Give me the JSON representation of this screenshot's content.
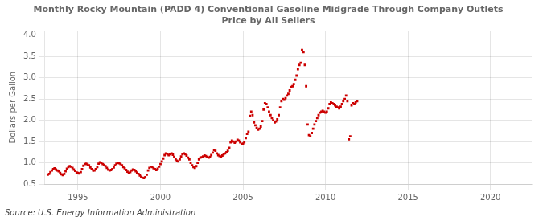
{
  "chart_data": {
    "type": "scatter",
    "title": "Monthly Rocky Mountain (PADD 4) Conventional Gasoline Midgrade Through Company Outlets\nPrice by All Sellers",
    "ylabel": "Dollars per Gallon",
    "annotations": [
      "Source: U.S. Energy Information Administration"
    ],
    "color": "#cc0000",
    "marker": "square",
    "grid": true,
    "xlim": [
      1993.0,
      2022.5
    ],
    "xticks": [
      1995,
      2000,
      2005,
      2010,
      2015,
      2020
    ],
    "ylim": [
      0.5,
      4.1
    ],
    "yticks": [
      0.5,
      {
        "value": 1.0,
        "label": "1.0"
      },
      1.5,
      {
        "value": 2.0,
        "label": "2.0"
      },
      2.5,
      {
        "value": 3.0,
        "label": "3.0"
      },
      3.5,
      {
        "value": 4.0,
        "label": "4.0"
      }
    ],
    "x": [
      1993.17,
      1993.25,
      1993.33,
      1993.42,
      1993.5,
      1993.58,
      1993.67,
      1993.75,
      1993.83,
      1993.92,
      1994.0,
      1994.08,
      1994.17,
      1994.25,
      1994.33,
      1994.42,
      1994.5,
      1994.58,
      1994.67,
      1994.75,
      1994.83,
      1994.92,
      1995.0,
      1995.08,
      1995.17,
      1995.25,
      1995.33,
      1995.42,
      1995.5,
      1995.58,
      1995.67,
      1995.75,
      1995.83,
      1995.92,
      1996.0,
      1996.08,
      1996.17,
      1996.25,
      1996.33,
      1996.42,
      1996.5,
      1996.58,
      1996.67,
      1996.75,
      1996.83,
      1996.92,
      1997.0,
      1997.08,
      1997.17,
      1997.25,
      1997.33,
      1997.42,
      1997.5,
      1997.58,
      1997.67,
      1997.75,
      1997.83,
      1997.92,
      1998.0,
      1998.08,
      1998.17,
      1998.25,
      1998.33,
      1998.42,
      1998.5,
      1998.58,
      1998.67,
      1998.75,
      1998.83,
      1998.92,
      1999.0,
      1999.08,
      1999.17,
      1999.25,
      1999.33,
      1999.42,
      1999.5,
      1999.58,
      1999.67,
      1999.75,
      1999.83,
      1999.92,
      2000.0,
      2000.08,
      2000.17,
      2000.25,
      2000.33,
      2000.42,
      2000.5,
      2000.58,
      2000.67,
      2000.75,
      2000.83,
      2000.92,
      2001.0,
      2001.08,
      2001.17,
      2001.25,
      2001.33,
      2001.42,
      2001.5,
      2001.58,
      2001.67,
      2001.75,
      2001.83,
      2001.92,
      2002.0,
      2002.08,
      2002.17,
      2002.25,
      2002.33,
      2002.42,
      2002.5,
      2002.58,
      2002.67,
      2002.75,
      2002.83,
      2002.92,
      2003.0,
      2003.08,
      2003.17,
      2003.25,
      2003.33,
      2003.42,
      2003.5,
      2003.58,
      2003.67,
      2003.75,
      2003.83,
      2003.92,
      2004.0,
      2004.08,
      2004.17,
      2004.25,
      2004.33,
      2004.42,
      2004.5,
      2004.58,
      2004.67,
      2004.75,
      2004.83,
      2004.92,
      2005.0,
      2005.08,
      2005.17,
      2005.25,
      2005.33,
      2005.42,
      2005.5,
      2005.58,
      2005.67,
      2005.75,
      2005.83,
      2005.92,
      2006.0,
      2006.08,
      2006.17,
      2006.25,
      2006.33,
      2006.42,
      2006.5,
      2006.58,
      2006.67,
      2006.75,
      2006.83,
      2006.92,
      2007.0,
      2007.08,
      2007.17,
      2007.25,
      2007.33,
      2007.42,
      2007.5,
      2007.58,
      2007.67,
      2007.75,
      2007.83,
      2007.92,
      2008.0,
      2008.08,
      2008.17,
      2008.25,
      2008.33,
      2008.42,
      2008.5,
      2008.58,
      2008.67,
      2008.75,
      2008.83,
      2008.92,
      2009.0,
      2009.08,
      2009.17,
      2009.25,
      2009.33,
      2009.42,
      2009.5,
      2009.58,
      2009.67,
      2009.75,
      2009.83,
      2009.92,
      2010.0,
      2010.08,
      2010.17,
      2010.25,
      2010.33,
      2010.42,
      2010.5,
      2010.58,
      2010.67,
      2010.75,
      2010.83,
      2010.92,
      2011.0,
      2011.08,
      2011.17,
      2011.25,
      2011.33,
      2011.42,
      2011.5,
      2011.58,
      2011.67,
      2011.75,
      2011.83,
      2011.92
    ],
    "values": [
      0.72,
      0.74,
      0.78,
      0.82,
      0.85,
      0.87,
      0.84,
      0.82,
      0.8,
      0.76,
      0.73,
      0.71,
      0.74,
      0.8,
      0.86,
      0.9,
      0.92,
      0.91,
      0.88,
      0.84,
      0.81,
      0.77,
      0.76,
      0.75,
      0.78,
      0.85,
      0.93,
      0.97,
      0.98,
      0.96,
      0.94,
      0.89,
      0.85,
      0.82,
      0.82,
      0.85,
      0.9,
      0.98,
      1.01,
      1.0,
      0.97,
      0.95,
      0.92,
      0.88,
      0.84,
      0.82,
      0.83,
      0.85,
      0.89,
      0.94,
      0.98,
      1.0,
      0.99,
      0.97,
      0.94,
      0.9,
      0.87,
      0.83,
      0.79,
      0.76,
      0.78,
      0.82,
      0.84,
      0.83,
      0.8,
      0.77,
      0.74,
      0.7,
      0.67,
      0.65,
      0.64,
      0.66,
      0.72,
      0.82,
      0.88,
      0.91,
      0.9,
      0.87,
      0.85,
      0.83,
      0.86,
      0.91,
      0.97,
      1.03,
      1.1,
      1.18,
      1.22,
      1.2,
      1.18,
      1.2,
      1.22,
      1.19,
      1.14,
      1.08,
      1.05,
      1.03,
      1.08,
      1.15,
      1.2,
      1.22,
      1.2,
      1.17,
      1.12,
      1.08,
      1.0,
      0.94,
      0.9,
      0.88,
      0.92,
      1.0,
      1.08,
      1.12,
      1.13,
      1.15,
      1.17,
      1.16,
      1.14,
      1.12,
      1.14,
      1.18,
      1.24,
      1.3,
      1.28,
      1.22,
      1.18,
      1.16,
      1.15,
      1.17,
      1.2,
      1.22,
      1.25,
      1.28,
      1.35,
      1.48,
      1.52,
      1.5,
      1.47,
      1.5,
      1.54,
      1.52,
      1.48,
      1.44,
      1.45,
      1.48,
      1.58,
      1.68,
      1.73,
      2.1,
      2.2,
      2.12,
      1.95,
      1.88,
      1.82,
      1.78,
      1.8,
      1.85,
      1.98,
      2.25,
      2.4,
      2.38,
      2.3,
      2.2,
      2.12,
      2.05,
      2.0,
      1.95,
      1.97,
      2.02,
      2.12,
      2.3,
      2.45,
      2.5,
      2.48,
      2.52,
      2.58,
      2.62,
      2.7,
      2.78,
      2.8,
      2.85,
      2.95,
      3.05,
      3.2,
      3.3,
      3.35,
      3.65,
      3.6,
      3.3,
      2.8,
      1.9,
      1.65,
      1.62,
      1.7,
      1.8,
      1.9,
      1.98,
      2.05,
      2.12,
      2.18,
      2.2,
      2.22,
      2.2,
      2.18,
      2.2,
      2.28,
      2.38,
      2.42,
      2.4,
      2.38,
      2.35,
      2.32,
      2.3,
      2.28,
      2.32,
      2.38,
      2.45,
      2.5,
      2.58,
      2.45,
      1.55,
      1.62,
      2.35,
      2.4,
      2.38,
      2.42,
      2.45
    ]
  }
}
